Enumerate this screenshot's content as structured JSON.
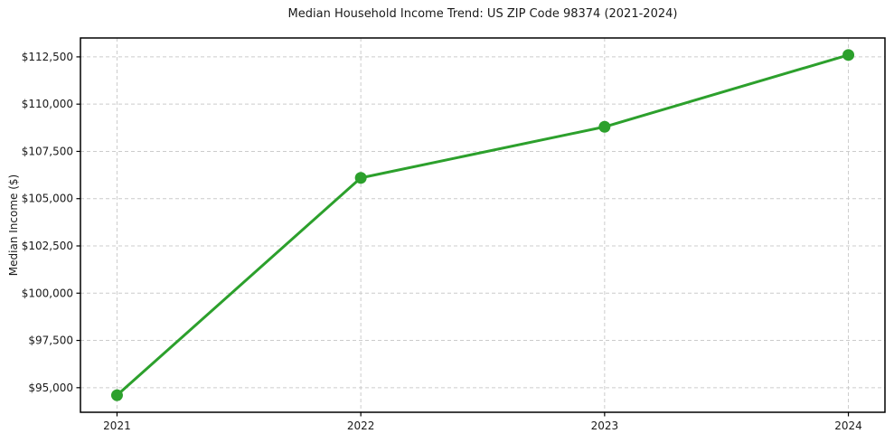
{
  "figure": {
    "title": "Median Household Income Trend: US ZIP Code 98374 (2021-2024)",
    "ylabel": "Median Income ($)"
  },
  "chart_data": {
    "type": "line",
    "title": "Median Household Income Trend: US ZIP Code 98374 (2021-2024)",
    "xlabel": "",
    "ylabel": "Median Income ($)",
    "x": [
      2021,
      2022,
      2023,
      2024
    ],
    "x_tick_labels": [
      "2021",
      "2022",
      "2023",
      "2024"
    ],
    "series": [
      {
        "name": "Median household income",
        "values": [
          94600,
          106100,
          108800,
          112600
        ],
        "color": "#2ca02c",
        "marker": "circle"
      }
    ],
    "y_ticks": [
      95000,
      97500,
      100000,
      102500,
      105000,
      107500,
      110000,
      112500
    ],
    "y_tick_labels": [
      "$95,000",
      "$97,500",
      "$100,000",
      "$102,500",
      "$105,000",
      "$107,500",
      "$110,000",
      "$112,500"
    ],
    "xlim": [
      2020.85,
      2024.15
    ],
    "ylim": [
      93700,
      113500
    ],
    "grid": true,
    "grid_style": "dashed",
    "legend": "none",
    "colors": {
      "line": "#2ca02c",
      "grid": "#cccccc",
      "frame": "#000000",
      "text": "#1a1a1a",
      "background": "#ffffff"
    }
  }
}
